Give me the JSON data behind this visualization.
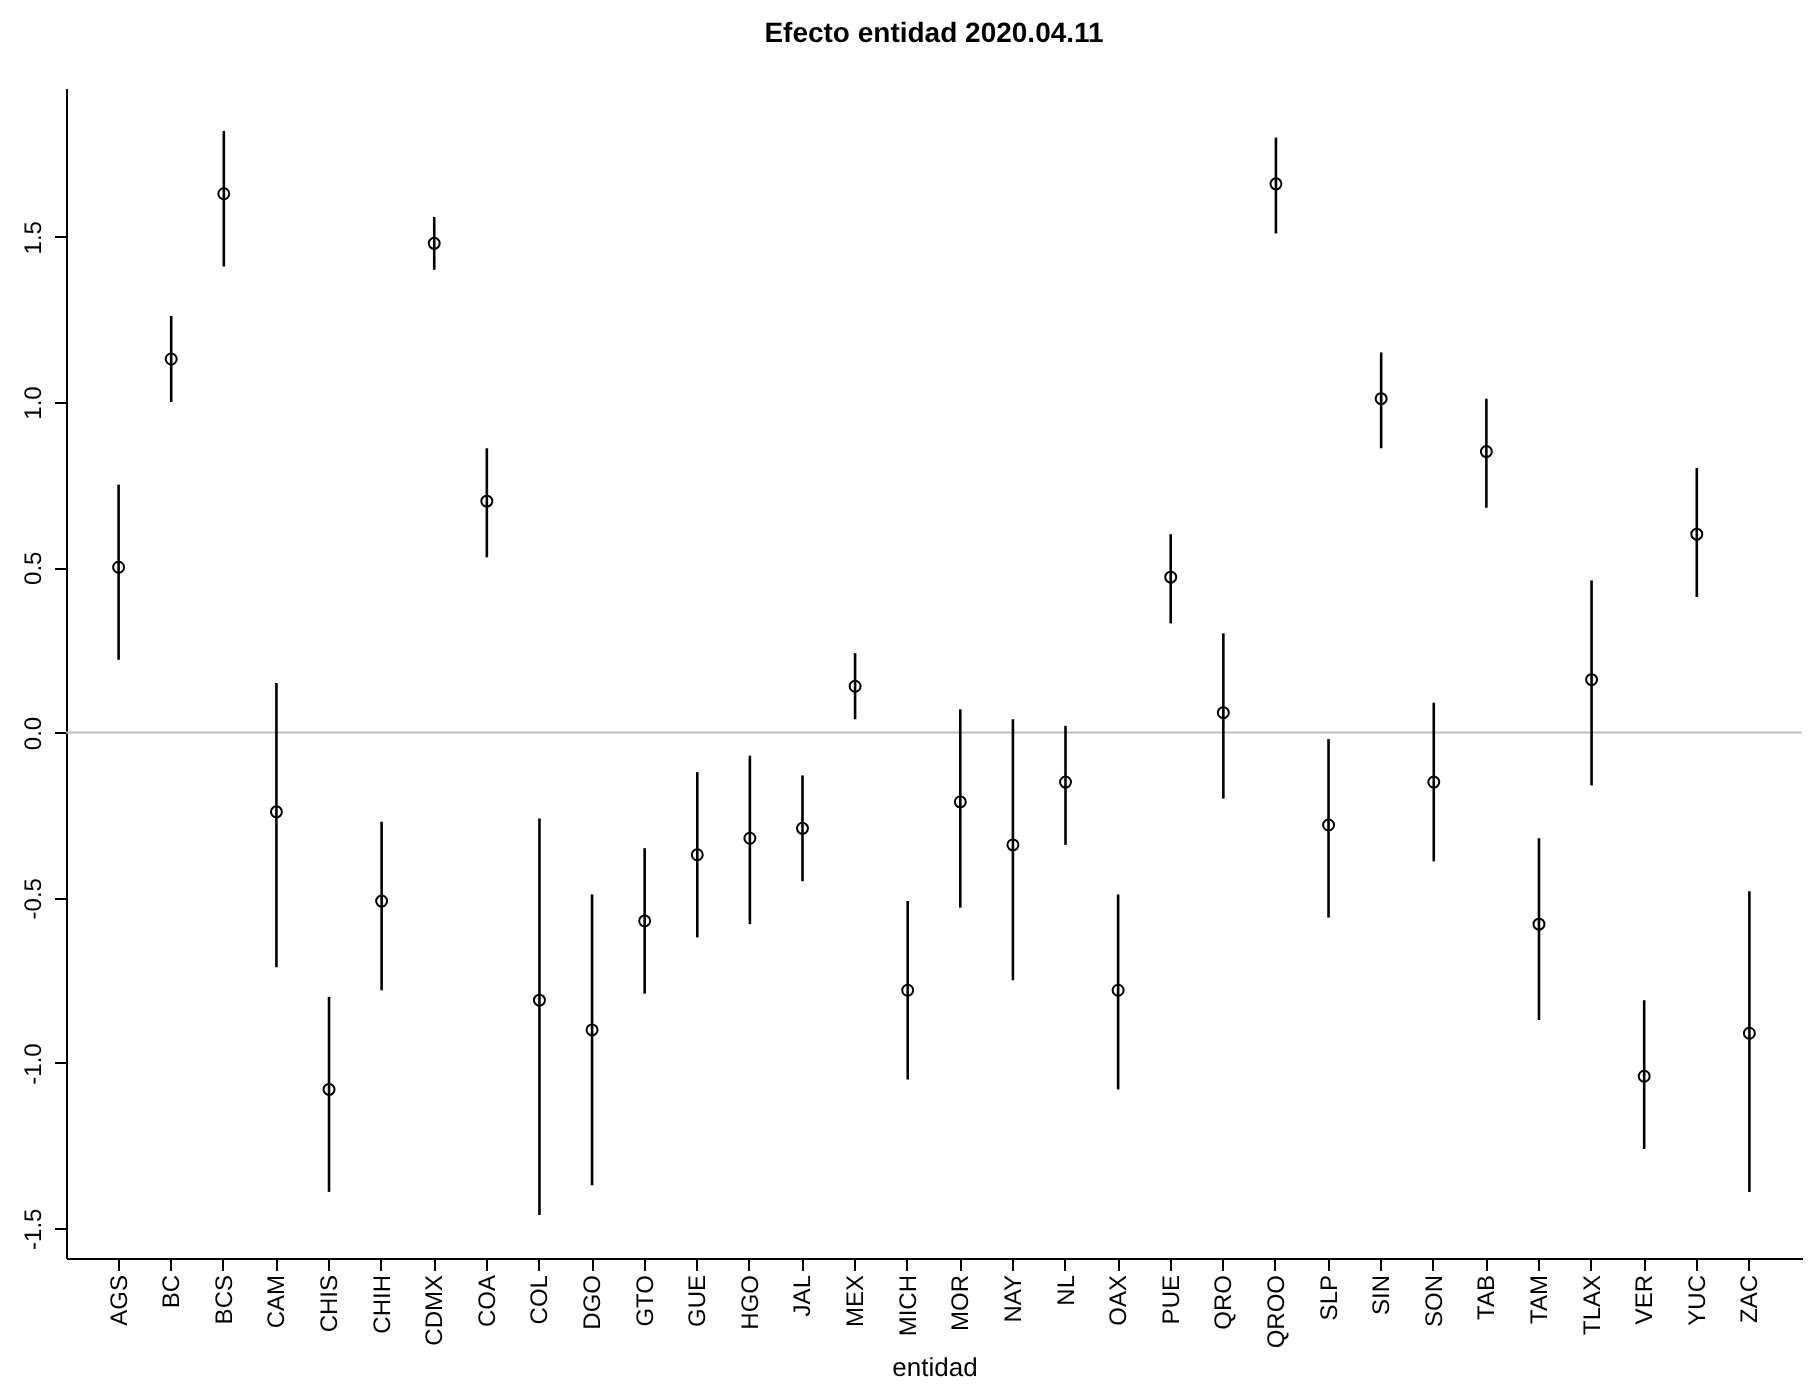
{
  "chart_data": {
    "type": "scatter",
    "title": "Efecto entidad 2020.04.11",
    "xlabel": "entidad",
    "categories": [
      "AGS",
      "BC",
      "BCS",
      "CAM",
      "CHIS",
      "CHIH",
      "CDMX",
      "COA",
      "COL",
      "DGO",
      "GTO",
      "GUE",
      "HGO",
      "JAL",
      "MEX",
      "MICH",
      "MOR",
      "NAY",
      "NL",
      "OAX",
      "PUE",
      "QRO",
      "QROO",
      "SLP",
      "SIN",
      "SON",
      "TAB",
      "TAM",
      "TLAX",
      "VER",
      "YUC",
      "ZAC"
    ],
    "values": [
      0.5,
      1.13,
      1.63,
      -0.24,
      -1.08,
      -0.51,
      1.48,
      0.7,
      -0.81,
      -0.9,
      -0.57,
      -0.37,
      -0.32,
      -0.29,
      0.14,
      -0.78,
      -0.21,
      -0.34,
      -0.15,
      -0.78,
      0.47,
      0.06,
      1.66,
      -0.28,
      1.01,
      -0.15,
      0.85,
      -0.58,
      0.16,
      -1.04,
      0.6,
      -0.91
    ],
    "errors": [
      [
        0.22,
        0.75
      ],
      [
        1.0,
        1.26
      ],
      [
        1.41,
        1.82
      ],
      [
        -0.71,
        0.15
      ],
      [
        -1.39,
        -0.8
      ],
      [
        -0.78,
        -0.27
      ],
      [
        1.4,
        1.56
      ],
      [
        0.53,
        0.86
      ],
      [
        -1.46,
        -0.26
      ],
      [
        -1.37,
        -0.49
      ],
      [
        -0.79,
        -0.35
      ],
      [
        -0.62,
        -0.12
      ],
      [
        -0.58,
        -0.07
      ],
      [
        -0.45,
        -0.13
      ],
      [
        0.04,
        0.24
      ],
      [
        -1.05,
        -0.51
      ],
      [
        -0.53,
        0.07
      ],
      [
        -0.75,
        0.04
      ],
      [
        -0.34,
        0.02
      ],
      [
        -1.08,
        -0.49
      ],
      [
        0.33,
        0.6
      ],
      [
        -0.2,
        0.3
      ],
      [
        1.51,
        1.8
      ],
      [
        -0.56,
        -0.02
      ],
      [
        0.86,
        1.15
      ],
      [
        -0.39,
        0.09
      ],
      [
        0.68,
        1.01
      ],
      [
        -0.87,
        -0.32
      ],
      [
        -0.16,
        0.46
      ],
      [
        -1.26,
        -0.81
      ],
      [
        0.41,
        0.8
      ],
      [
        -1.39,
        -0.48
      ]
    ],
    "color": "#000000",
    "marker": "circle",
    "ylim": [
      -1.59,
      1.95
    ],
    "yticks": [
      -1.5,
      {
        "value": -1,
        "label": "-1.0"
      },
      -0.5,
      {
        "value": 0,
        "label": "0.0"
      },
      0.5,
      {
        "value": 1,
        "label": "1.0"
      },
      1.5
    ],
    "ref_lines": [
      {
        "axis": "y",
        "value": 0,
        "color": "#bebebe"
      }
    ]
  }
}
